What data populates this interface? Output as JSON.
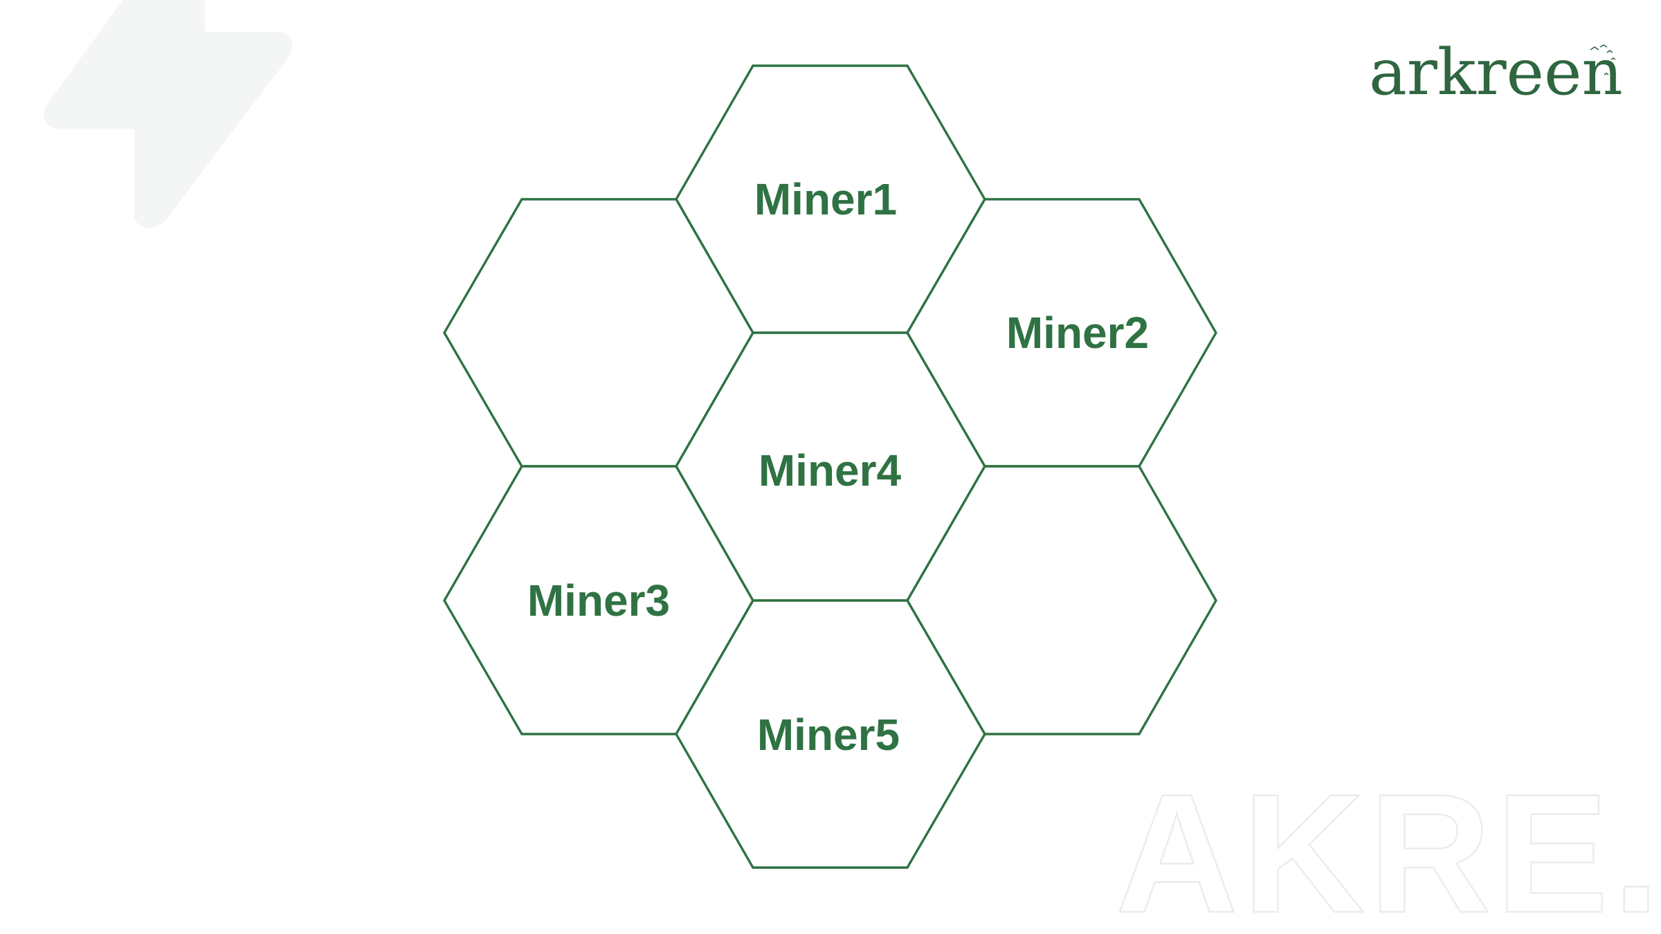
{
  "logo": {
    "text": "arkreen"
  },
  "watermark": {
    "text": "AKRE."
  },
  "hexagons": [
    {
      "id": "top",
      "label": "Miner1"
    },
    {
      "id": "upper-left",
      "label": ""
    },
    {
      "id": "upper-right",
      "label": "Miner2"
    },
    {
      "id": "center",
      "label": "Miner4"
    },
    {
      "id": "lower-left",
      "label": "Miner3"
    },
    {
      "id": "lower-right",
      "label": ""
    },
    {
      "id": "bottom",
      "label": "Miner5"
    }
  ],
  "colors": {
    "accent": "#2f7243",
    "logo": "#2f6640",
    "decoration": "#f4f6f5",
    "watermark": "#ececec"
  }
}
